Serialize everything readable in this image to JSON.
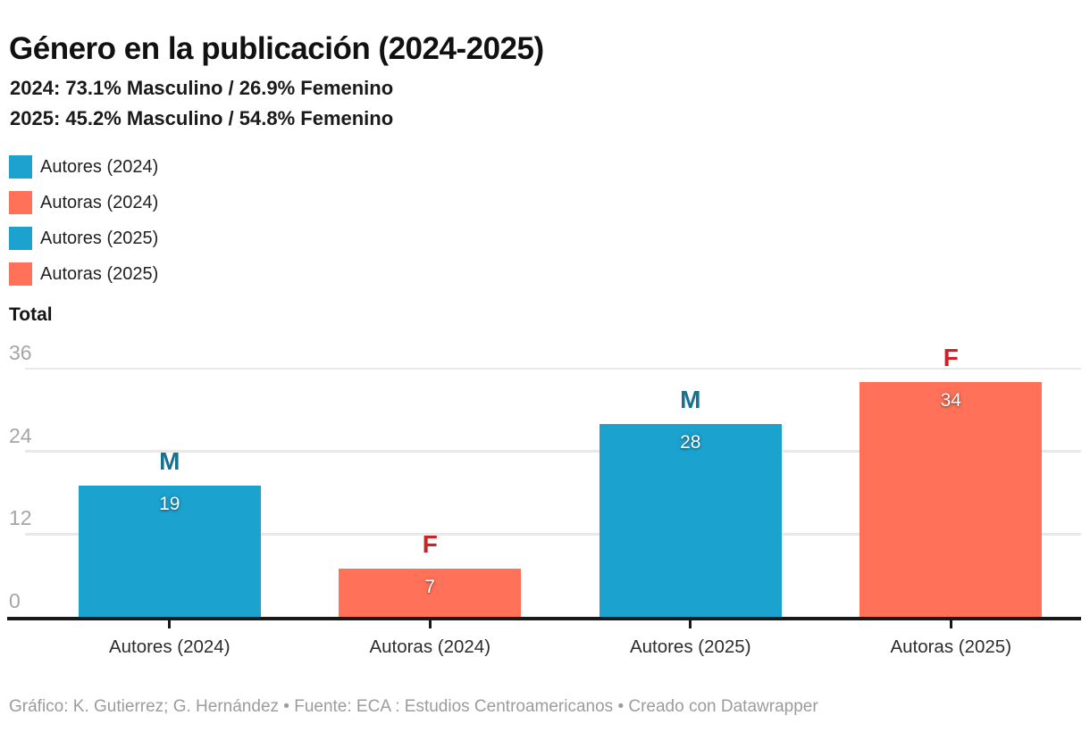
{
  "header": {
    "title": "Género en la publicación (2024-2025)",
    "subtitle_line1": "2024: 73.1% Masculino / 26.9% Femenino",
    "subtitle_line2": "2025: 45.2% Masculino / 54.8% Femenino"
  },
  "legend": {
    "items": [
      {
        "label": "Autores (2024)",
        "color": "#1ba2ce"
      },
      {
        "label": "Autoras (2024)",
        "color": "#ff7158"
      },
      {
        "label": "Autores (2025)",
        "color": "#1ba2ce"
      },
      {
        "label": "Autoras (2025)",
        "color": "#ff7158"
      }
    ]
  },
  "axis": {
    "y_title": "Total"
  },
  "chart_data": {
    "type": "bar",
    "title": "Género en la publicación (2024-2025)",
    "categories": [
      "Autores (2024)",
      "Autoras (2024)",
      "Autores (2025)",
      "Autoras (2025)"
    ],
    "values": [
      19,
      7,
      28,
      34
    ],
    "bar_colors": [
      "#1ba2ce",
      "#ff7158",
      "#1ba2ce",
      "#ff7158"
    ],
    "bar_top_labels": [
      "M",
      "F",
      "M",
      "F"
    ],
    "bar_top_label_colors": [
      "#17718f",
      "#cc2127",
      "#17718f",
      "#cc2127"
    ],
    "value_label_color": "#ffffff",
    "xlabel": "",
    "ylabel": "Total",
    "yticks": [
      0,
      12,
      24,
      36
    ],
    "ylim": [
      0,
      36
    ],
    "grid": "horizontal",
    "legend_position": "top-left",
    "legend_entries": [
      "Autores (2024)",
      "Autoras (2024)",
      "Autores (2025)",
      "Autoras (2025)"
    ]
  },
  "colors": {
    "male_bar": "#1ba2ce",
    "female_bar": "#ff7158",
    "male_letter": "#17718f",
    "female_letter": "#cc2127",
    "gridline": "#e8e8e8",
    "axis_line": "#191919",
    "y_tick_text": "#a6a6a6",
    "footer_text": "#9c9c9c"
  },
  "footer": {
    "text": "Gráfico: K. Gutierrez; G. Hernández • Fuente: ECA : Estudios Centroamericanos • Creado con Datawrapper"
  }
}
